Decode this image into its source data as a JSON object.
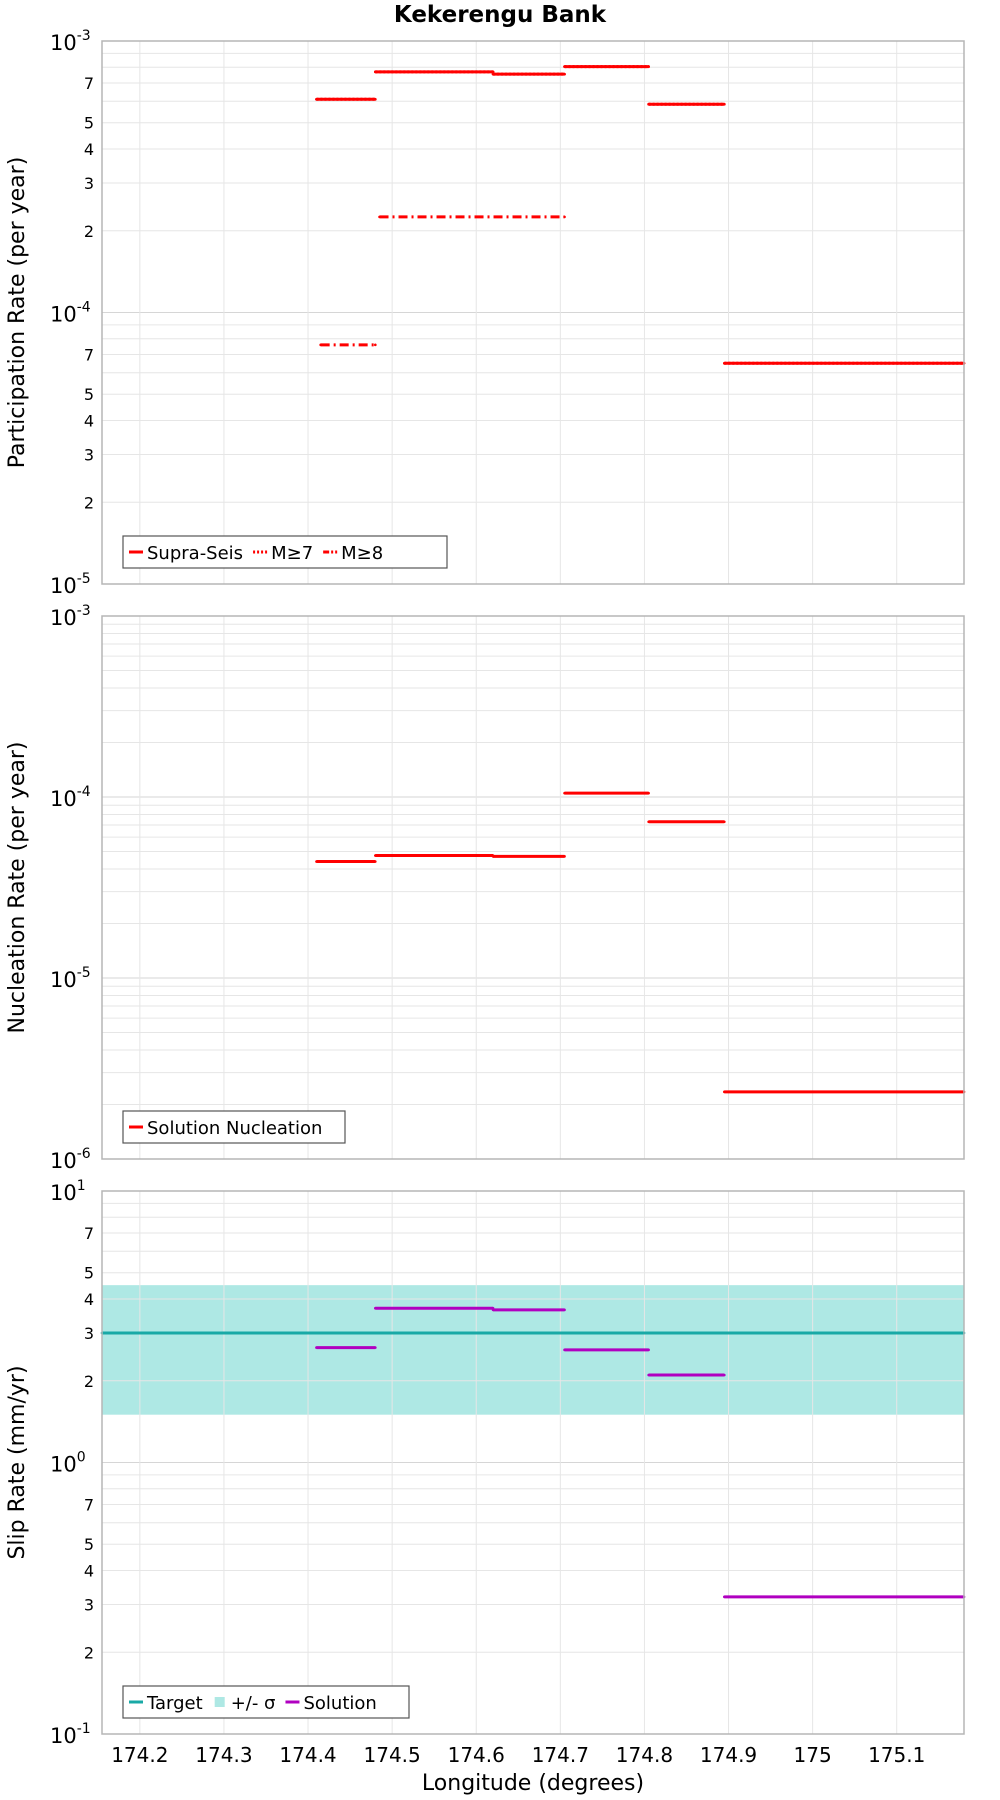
{
  "figure": {
    "title": "Kekerengu Bank",
    "xlabel": "Longitude (degrees)"
  },
  "chart_data": [
    {
      "type": "line",
      "ylabel": "Participation Rate (per year)",
      "yscale": "log",
      "xlim": [
        174.155,
        175.18
      ],
      "ylim": [
        1e-05,
        0.001
      ],
      "grid": true,
      "legend_position": "bottom-left",
      "series": [
        {
          "name": "Supra-Seis",
          "style": "solid",
          "color": "#ff0000",
          "segments": [
            [
              174.41,
              174.48,
              0.00061
            ],
            [
              174.48,
              174.62,
              0.00077
            ],
            [
              174.62,
              174.705,
              0.000755
            ],
            [
              174.705,
              174.805,
              0.000805
            ],
            [
              174.805,
              174.895,
              0.000585
            ],
            [
              174.895,
              175.18,
              6.5e-05
            ]
          ]
        },
        {
          "name": "M≥7",
          "style": "dotted",
          "color": "#ff0000",
          "segments": [
            [
              174.41,
              174.48,
              0.00061
            ],
            [
              174.48,
              174.62,
              0.00077
            ],
            [
              174.62,
              174.705,
              0.000755
            ],
            [
              174.705,
              174.805,
              0.000805
            ],
            [
              174.805,
              174.895,
              0.000585
            ],
            [
              174.895,
              175.18,
              6.5e-05
            ]
          ]
        },
        {
          "name": "M≥8",
          "style": "dashdot",
          "color": "#ff0000",
          "segments": [
            [
              174.415,
              174.48,
              7.6e-05
            ],
            [
              174.485,
              174.705,
              0.000225
            ]
          ]
        }
      ]
    },
    {
      "type": "line",
      "ylabel": "Nucleation Rate (per year)",
      "yscale": "log",
      "xlim": [
        174.155,
        175.18
      ],
      "ylim": [
        1e-06,
        0.001
      ],
      "grid": true,
      "legend_position": "bottom-left",
      "series": [
        {
          "name": "Solution Nucleation",
          "style": "solid",
          "color": "#ff0000",
          "segments": [
            [
              174.41,
              174.48,
              4.4e-05
            ],
            [
              174.48,
              174.62,
              4.75e-05
            ],
            [
              174.62,
              174.705,
              4.7e-05
            ],
            [
              174.705,
              174.805,
              0.000105
            ],
            [
              174.805,
              174.895,
              7.3e-05
            ],
            [
              174.895,
              175.18,
              2.35e-06
            ]
          ]
        }
      ]
    },
    {
      "type": "line",
      "ylabel": "Slip Rate (mm/yr)",
      "yscale": "log",
      "xlim": [
        174.155,
        175.18
      ],
      "ylim": [
        0.1,
        10
      ],
      "grid": true,
      "legend_position": "bottom-left",
      "band": {
        "name": "+/- σ",
        "color": "#aee8e4",
        "lo": 1.5,
        "hi": 4.5,
        "x": [
          174.155,
          175.18
        ]
      },
      "series": [
        {
          "name": "Target",
          "style": "solid",
          "color": "#18a9a6",
          "segments": [
            [
              174.155,
              175.18,
              3.0
            ]
          ]
        },
        {
          "name": "Solution",
          "style": "solid",
          "color": "#b000c0",
          "segments": [
            [
              174.41,
              174.48,
              2.65
            ],
            [
              174.48,
              174.62,
              3.7
            ],
            [
              174.62,
              174.705,
              3.65
            ],
            [
              174.705,
              174.805,
              2.6
            ],
            [
              174.805,
              174.895,
              2.1
            ],
            [
              174.895,
              175.18,
              0.32
            ]
          ]
        }
      ]
    }
  ],
  "axes": {
    "x_ticks": [
      "174.2",
      "174.3",
      "174.4",
      "174.5",
      "174.6",
      "174.7",
      "174.8",
      "174.9",
      "175",
      "175.1"
    ],
    "panels": [
      {
        "decades": [
          {
            "v": 0.001,
            "base": "10",
            "exp": "-3"
          },
          {
            "v": 0.0001,
            "base": "10",
            "exp": "-4"
          },
          {
            "v": 1e-05,
            "base": "10",
            "exp": "-5"
          }
        ],
        "minor": [
          {
            "v": 0.0007,
            "label": "7"
          },
          {
            "v": 0.0005,
            "label": "5"
          },
          {
            "v": 0.0004,
            "label": "4"
          },
          {
            "v": 0.0003,
            "label": "3"
          },
          {
            "v": 0.0002,
            "label": "2"
          },
          {
            "v": 7e-05,
            "label": "7"
          },
          {
            "v": 5e-05,
            "label": "5"
          },
          {
            "v": 4e-05,
            "label": "4"
          },
          {
            "v": 3e-05,
            "label": "3"
          },
          {
            "v": 2e-05,
            "label": "2"
          }
        ]
      },
      {
        "decades": [
          {
            "v": 0.001,
            "base": "10",
            "exp": "-3"
          },
          {
            "v": 0.0001,
            "base": "10",
            "exp": "-4"
          },
          {
            "v": 1e-05,
            "base": "10",
            "exp": "-5"
          },
          {
            "v": 1e-06,
            "base": "10",
            "exp": "-6"
          }
        ],
        "minor": []
      },
      {
        "decades": [
          {
            "v": 10,
            "base": "10",
            "exp": "1"
          },
          {
            "v": 1,
            "base": "10",
            "exp": "0"
          },
          {
            "v": 0.1,
            "base": "10",
            "exp": "-1"
          }
        ],
        "minor": [
          {
            "v": 7,
            "label": "7"
          },
          {
            "v": 5,
            "label": "5"
          },
          {
            "v": 4,
            "label": "4"
          },
          {
            "v": 3,
            "label": "3"
          },
          {
            "v": 2,
            "label": "2"
          },
          {
            "v": 0.7,
            "label": "7"
          },
          {
            "v": 0.5,
            "label": "5"
          },
          {
            "v": 0.4,
            "label": "4"
          },
          {
            "v": 0.3,
            "label": "3"
          },
          {
            "v": 0.2,
            "label": "2"
          }
        ]
      }
    ]
  }
}
